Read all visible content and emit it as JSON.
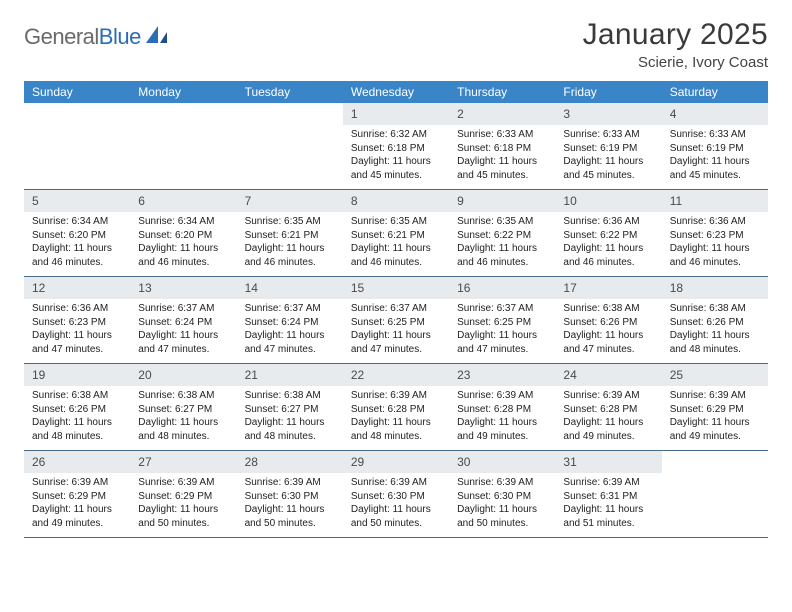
{
  "brand": {
    "name_a": "General",
    "name_b": "Blue"
  },
  "title": "January 2025",
  "location": "Scierie, Ivory Coast",
  "colors": {
    "header_bg": "#3a84c8",
    "header_text": "#ffffff",
    "daynum_bg": "#e8ebee",
    "week_border": "#4a6a8a",
    "logo_gray": "#6a6a6a",
    "logo_blue": "#2a6db8",
    "text": "#222222",
    "background": "#ffffff"
  },
  "day_names": [
    "Sunday",
    "Monday",
    "Tuesday",
    "Wednesday",
    "Thursday",
    "Friday",
    "Saturday"
  ],
  "weeks": [
    [
      {
        "n": "",
        "sr": "",
        "ss": "",
        "dl": ""
      },
      {
        "n": "",
        "sr": "",
        "ss": "",
        "dl": ""
      },
      {
        "n": "",
        "sr": "",
        "ss": "",
        "dl": ""
      },
      {
        "n": "1",
        "sr": "6:32 AM",
        "ss": "6:18 PM",
        "dl": "11 hours and 45 minutes."
      },
      {
        "n": "2",
        "sr": "6:33 AM",
        "ss": "6:18 PM",
        "dl": "11 hours and 45 minutes."
      },
      {
        "n": "3",
        "sr": "6:33 AM",
        "ss": "6:19 PM",
        "dl": "11 hours and 45 minutes."
      },
      {
        "n": "4",
        "sr": "6:33 AM",
        "ss": "6:19 PM",
        "dl": "11 hours and 45 minutes."
      }
    ],
    [
      {
        "n": "5",
        "sr": "6:34 AM",
        "ss": "6:20 PM",
        "dl": "11 hours and 46 minutes."
      },
      {
        "n": "6",
        "sr": "6:34 AM",
        "ss": "6:20 PM",
        "dl": "11 hours and 46 minutes."
      },
      {
        "n": "7",
        "sr": "6:35 AM",
        "ss": "6:21 PM",
        "dl": "11 hours and 46 minutes."
      },
      {
        "n": "8",
        "sr": "6:35 AM",
        "ss": "6:21 PM",
        "dl": "11 hours and 46 minutes."
      },
      {
        "n": "9",
        "sr": "6:35 AM",
        "ss": "6:22 PM",
        "dl": "11 hours and 46 minutes."
      },
      {
        "n": "10",
        "sr": "6:36 AM",
        "ss": "6:22 PM",
        "dl": "11 hours and 46 minutes."
      },
      {
        "n": "11",
        "sr": "6:36 AM",
        "ss": "6:23 PM",
        "dl": "11 hours and 46 minutes."
      }
    ],
    [
      {
        "n": "12",
        "sr": "6:36 AM",
        "ss": "6:23 PM",
        "dl": "11 hours and 47 minutes."
      },
      {
        "n": "13",
        "sr": "6:37 AM",
        "ss": "6:24 PM",
        "dl": "11 hours and 47 minutes."
      },
      {
        "n": "14",
        "sr": "6:37 AM",
        "ss": "6:24 PM",
        "dl": "11 hours and 47 minutes."
      },
      {
        "n": "15",
        "sr": "6:37 AM",
        "ss": "6:25 PM",
        "dl": "11 hours and 47 minutes."
      },
      {
        "n": "16",
        "sr": "6:37 AM",
        "ss": "6:25 PM",
        "dl": "11 hours and 47 minutes."
      },
      {
        "n": "17",
        "sr": "6:38 AM",
        "ss": "6:26 PM",
        "dl": "11 hours and 47 minutes."
      },
      {
        "n": "18",
        "sr": "6:38 AM",
        "ss": "6:26 PM",
        "dl": "11 hours and 48 minutes."
      }
    ],
    [
      {
        "n": "19",
        "sr": "6:38 AM",
        "ss": "6:26 PM",
        "dl": "11 hours and 48 minutes."
      },
      {
        "n": "20",
        "sr": "6:38 AM",
        "ss": "6:27 PM",
        "dl": "11 hours and 48 minutes."
      },
      {
        "n": "21",
        "sr": "6:38 AM",
        "ss": "6:27 PM",
        "dl": "11 hours and 48 minutes."
      },
      {
        "n": "22",
        "sr": "6:39 AM",
        "ss": "6:28 PM",
        "dl": "11 hours and 48 minutes."
      },
      {
        "n": "23",
        "sr": "6:39 AM",
        "ss": "6:28 PM",
        "dl": "11 hours and 49 minutes."
      },
      {
        "n": "24",
        "sr": "6:39 AM",
        "ss": "6:28 PM",
        "dl": "11 hours and 49 minutes."
      },
      {
        "n": "25",
        "sr": "6:39 AM",
        "ss": "6:29 PM",
        "dl": "11 hours and 49 minutes."
      }
    ],
    [
      {
        "n": "26",
        "sr": "6:39 AM",
        "ss": "6:29 PM",
        "dl": "11 hours and 49 minutes."
      },
      {
        "n": "27",
        "sr": "6:39 AM",
        "ss": "6:29 PM",
        "dl": "11 hours and 50 minutes."
      },
      {
        "n": "28",
        "sr": "6:39 AM",
        "ss": "6:30 PM",
        "dl": "11 hours and 50 minutes."
      },
      {
        "n": "29",
        "sr": "6:39 AM",
        "ss": "6:30 PM",
        "dl": "11 hours and 50 minutes."
      },
      {
        "n": "30",
        "sr": "6:39 AM",
        "ss": "6:30 PM",
        "dl": "11 hours and 50 minutes."
      },
      {
        "n": "31",
        "sr": "6:39 AM",
        "ss": "6:31 PM",
        "dl": "11 hours and 51 minutes."
      },
      {
        "n": "",
        "sr": "",
        "ss": "",
        "dl": ""
      }
    ]
  ],
  "labels": {
    "sunrise": "Sunrise:",
    "sunset": "Sunset:",
    "daylight": "Daylight:"
  }
}
